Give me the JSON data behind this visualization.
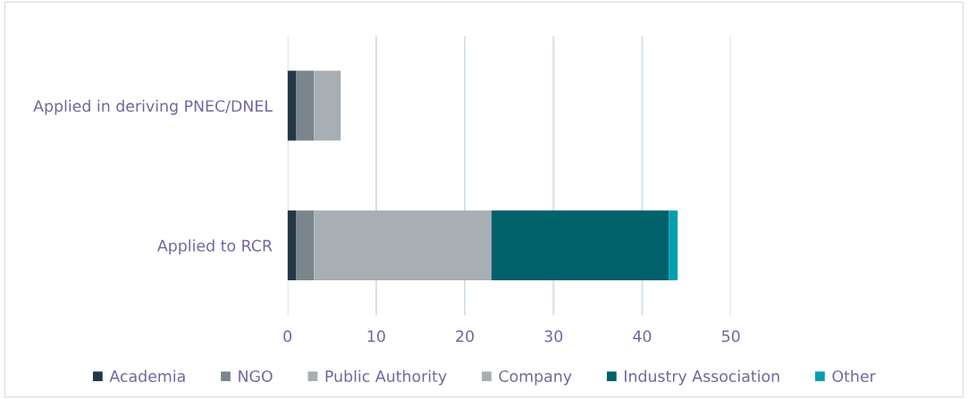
{
  "chart_data": {
    "type": "bar",
    "orientation": "horizontal",
    "stacked": true,
    "categories": [
      "Applied in deriving PNEC/DNEL",
      "Applied to RCR"
    ],
    "series": [
      {
        "name": "Academia",
        "color": "#253746",
        "values": [
          1,
          1
        ]
      },
      {
        "name": "NGO",
        "color": "#7b868c",
        "values": [
          2,
          2
        ]
      },
      {
        "name": "Public Authority",
        "color": "#a7afb4",
        "values": [
          0,
          0
        ]
      },
      {
        "name": "Company",
        "color": "#a7afb4",
        "values": [
          3,
          20
        ]
      },
      {
        "name": "Industry Association",
        "color": "#00616b",
        "values": [
          0,
          20
        ]
      },
      {
        "name": "Other",
        "color": "#009faf",
        "values": [
          0,
          1
        ]
      }
    ],
    "xlim": [
      0,
      50
    ],
    "xticks": [
      0,
      10,
      20,
      30,
      40,
      50
    ],
    "grid": "x",
    "legend": "bottom"
  }
}
